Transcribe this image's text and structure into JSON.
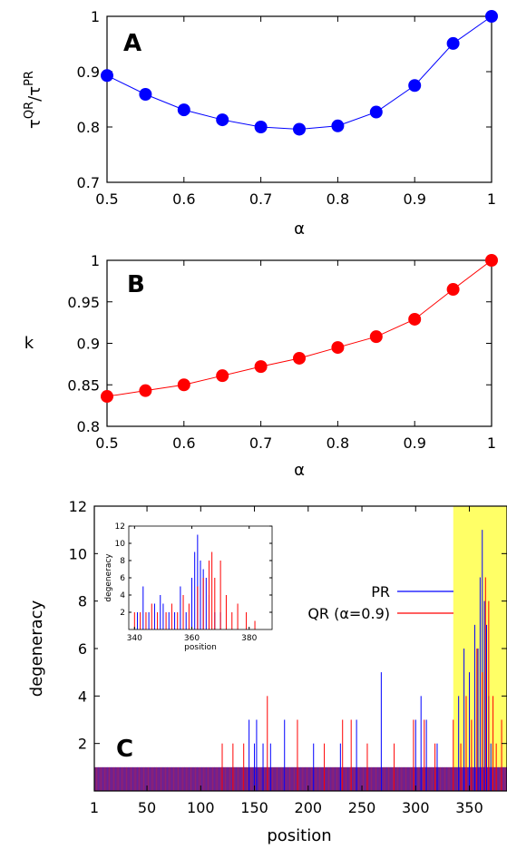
{
  "chart_data": [
    {
      "type": "line",
      "panel_label": "A",
      "xlabel": "α",
      "ylabel_base1": "τ",
      "ylabel_sup1": "QR",
      "ylabel_slash": "/",
      "ylabel_base2": "τ",
      "ylabel_sup2": "PR",
      "xlim": [
        0.5,
        1
      ],
      "ylim": [
        0.7,
        1
      ],
      "xticks": [
        "0.5",
        "0.6",
        "0.7",
        "0.8",
        "0.9",
        "1"
      ],
      "yticks": [
        "0.7",
        "0.8",
        "0.9",
        "1"
      ],
      "grid": false,
      "series": [
        {
          "color": "#0000ff",
          "x": [
            0.5,
            0.55,
            0.6,
            0.65,
            0.7,
            0.75,
            0.8,
            0.85,
            0.9,
            0.95,
            1.0
          ],
          "y": [
            0.893,
            0.859,
            0.831,
            0.813,
            0.8,
            0.796,
            0.802,
            0.827,
            0.875,
            0.951,
            1.0
          ]
        }
      ]
    },
    {
      "type": "line",
      "panel_label": "B",
      "xlabel": "α",
      "ylabel": "k",
      "xlim": [
        0.5,
        1
      ],
      "ylim": [
        0.8,
        1
      ],
      "xticks": [
        "0.5",
        "0.6",
        "0.7",
        "0.8",
        "0.9",
        "1"
      ],
      "yticks": [
        "0.8",
        "0.85",
        "0.9",
        "0.95",
        "1"
      ],
      "grid": false,
      "series": [
        {
          "color": "#ff0000",
          "x": [
            0.5,
            0.55,
            0.6,
            0.65,
            0.7,
            0.75,
            0.8,
            0.85,
            0.9,
            0.95,
            1.0
          ],
          "y": [
            0.836,
            0.843,
            0.85,
            0.861,
            0.872,
            0.882,
            0.895,
            0.908,
            0.929,
            0.965,
            1.0
          ]
        }
      ]
    },
    {
      "type": "bar",
      "panel_label": "C",
      "xlabel": "position",
      "ylabel": "degeneracy",
      "xlim": [
        1,
        385
      ],
      "ylim": [
        0,
        12
      ],
      "xticks": [
        "1",
        "50",
        "100",
        "150",
        "200",
        "250",
        "300",
        "350"
      ],
      "yticks": [
        "2",
        "4",
        "6",
        "8",
        "10",
        "12"
      ],
      "highlight_range": [
        335,
        385
      ],
      "highlight_color": "#ffff66",
      "legend_position": "top-right",
      "series": [
        {
          "name": "PR",
          "color": "#0000ff",
          "positions": [
            145,
            150,
            152,
            158,
            165,
            178,
            205,
            230,
            245,
            268,
            300,
            305,
            310,
            320,
            340,
            345,
            350,
            355,
            358,
            360,
            362,
            364,
            366,
            368,
            370
          ],
          "heights": [
            3,
            2,
            3,
            2,
            2,
            3,
            2,
            2,
            3,
            5,
            3,
            4,
            3,
            2,
            4,
            6,
            5,
            7,
            6,
            9,
            11,
            8,
            7,
            4,
            2
          ]
        },
        {
          "name": "QR (α=0.9)",
          "color": "#ff0000",
          "positions": [
            120,
            130,
            140,
            162,
            190,
            215,
            232,
            240,
            255,
            280,
            298,
            308,
            318,
            335,
            342,
            347,
            352,
            357,
            362,
            365,
            368,
            372,
            375,
            380
          ],
          "heights": [
            2,
            2,
            2,
            4,
            3,
            2,
            3,
            3,
            2,
            2,
            3,
            3,
            2,
            3,
            2,
            4,
            3,
            6,
            5,
            9,
            8,
            4,
            2,
            3
          ]
        }
      ],
      "baseline_degeneracy": 1,
      "baseline_range": [
        1,
        385
      ],
      "inset": {
        "xlabel": "position",
        "ylabel": "degeneracy",
        "xlim": [
          338,
          388
        ],
        "ylim": [
          0,
          12
        ],
        "xticks": [
          "340",
          "360",
          "380"
        ],
        "yticks": [
          "2",
          "4",
          "6",
          "8",
          "10",
          "12"
        ],
        "series": [
          {
            "name": "PR",
            "color": "#0000ff",
            "positions": [
              341,
              343,
              345,
              347,
              349,
              350,
              352,
              354,
              356,
              358,
              360,
              361,
              362,
              363,
              364,
              365,
              366,
              368,
              370
            ],
            "heights": [
              2,
              5,
              2,
              3,
              4,
              3,
              2,
              2,
              5,
              2,
              6,
              9,
              11,
              8,
              7,
              6,
              4,
              2,
              2
            ]
          },
          {
            "name": "QR (α=0.9)",
            "color": "#ff0000",
            "positions": [
              340,
              342,
              344,
              346,
              348,
              351,
              353,
              355,
              357,
              359,
              362,
              364,
              366,
              367,
              368,
              370,
              372,
              374,
              376,
              379,
              382
            ],
            "heights": [
              2,
              2,
              2,
              3,
              2,
              2,
              3,
              2,
              4,
              3,
              5,
              6,
              8,
              9,
              6,
              8,
              4,
              2,
              3,
              2,
              1
            ]
          }
        ]
      }
    }
  ]
}
